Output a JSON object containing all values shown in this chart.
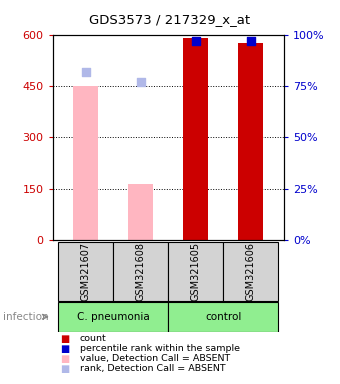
{
  "title": "GDS3573 / 217329_x_at",
  "samples": [
    "GSM321607",
    "GSM321608",
    "GSM321605",
    "GSM321606"
  ],
  "count_values": [
    null,
    null,
    590,
    575
  ],
  "rank_values": [
    null,
    null,
    97,
    97
  ],
  "absent_count_values": [
    450,
    165,
    null,
    null
  ],
  "absent_rank_values": [
    82,
    77,
    null,
    null
  ],
  "ylim_left": [
    0,
    600
  ],
  "ylim_right": [
    0,
    100
  ],
  "yticks_left": [
    0,
    150,
    300,
    450,
    600
  ],
  "yticks_right": [
    0,
    25,
    50,
    75,
    100
  ],
  "ytick_labels_left": [
    "0",
    "150",
    "300",
    "450",
    "600"
  ],
  "ytick_labels_right": [
    "0%",
    "25%",
    "50%",
    "75%",
    "100%"
  ],
  "left_color": "#cc0000",
  "right_color": "#0000cc",
  "bar_width": 0.45,
  "dot_size": 28,
  "legend_items": [
    "count",
    "percentile rank within the sample",
    "value, Detection Call = ABSENT",
    "rank, Detection Call = ABSENT"
  ],
  "legend_colors": [
    "#cc0000",
    "#0000cc",
    "#FFB6C1",
    "#b0b8e8"
  ],
  "background_color": "#ffffff",
  "plot_bg_color": "#ffffff",
  "sample_bg_color": "#d3d3d3",
  "cpneumonia_color": "#90EE90",
  "control_color": "#90EE90",
  "count_color": "#cc0000",
  "rank_color": "#0000cc",
  "absent_count_color": "#FFB6C1",
  "absent_rank_color": "#b0b8e8"
}
